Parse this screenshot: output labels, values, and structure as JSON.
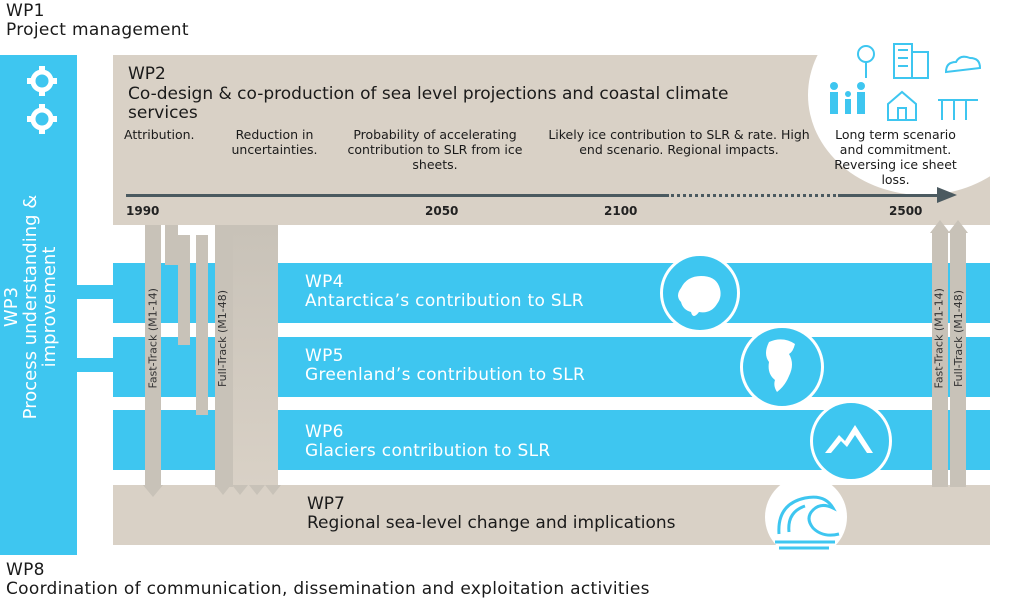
{
  "wp1": {
    "id": "WP1",
    "title": "Project management"
  },
  "wp2": {
    "id": "WP2",
    "title": "Co-design & co-production of sea level projections and coastal climate services",
    "milestones": [
      "Attribution.",
      "Reduction in uncertainties.",
      "Probability of accelerating contribution to SLR from ice sheets.",
      "Likely ice contribution to SLR & rate. High end scenario. Regional impacts.",
      "Long term scenario and commitment. Reversing ice sheet loss."
    ],
    "timeline": [
      "1990",
      "2050",
      "2100",
      "2500"
    ]
  },
  "wp3": {
    "id": "WP3",
    "title": "Process understanding & improvement"
  },
  "wp4": {
    "id": "WP4",
    "title": "Antarctica’s contribution to SLR",
    "icon": "antarctica-icon"
  },
  "wp5": {
    "id": "WP5",
    "title": "Greenland’s contribution to SLR",
    "icon": "greenland-icon"
  },
  "wp6": {
    "id": "WP6",
    "title": "Glaciers contribution to SLR",
    "icon": "mountain-icon"
  },
  "wp7": {
    "id": "WP7",
    "title": "Regional sea-level change and implications",
    "icon": "wave-icon"
  },
  "wp8": {
    "id": "WP8",
    "title": "Coordination of communication, dissemination and exploitation activities"
  },
  "tracks": {
    "fast": "Fast-Track (M1-14)",
    "full": "Full-Track (M1-48)"
  },
  "colors": {
    "blue": "#3ec6f0",
    "tan": "#d9d1c6",
    "grey_arrow": "#c8c2b8"
  }
}
